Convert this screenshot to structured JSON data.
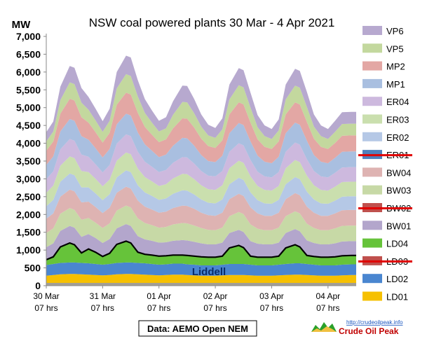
{
  "colors": {
    "VP6": "#b7a9cf",
    "VP5": "#c3d89e",
    "MP2": "#e3a7a4",
    "MP1": "#a9bfe0",
    "ER04": "#cdb9de",
    "ER03": "#cadfae",
    "ER02": "#b5c8e6",
    "ER01": "#4f81bd",
    "BW04": "#deb3b2",
    "BW03": "#c7d9a6",
    "BW02": "#c0504d",
    "BW01": "#b3a6cc",
    "LD04": "#66c33a",
    "LD03": "#c0504d",
    "LD02": "#4a86d0",
    "LD01": "#f6c000",
    "base": "#a39f94",
    "strike": "#e00000",
    "liddell_line": "#000000"
  },
  "chart_data": {
    "type": "area",
    "stacked": true,
    "title": "NSW coal powered plants 30 Mar - 4 Apr 2021",
    "ylabel": "MW",
    "ylim": [
      0,
      7000
    ],
    "yticks": [
      "0",
      "500",
      "1,000",
      "1,500",
      "2,000",
      "2,500",
      "3,000",
      "3,500",
      "4,000",
      "4,500",
      "5,000",
      "5,500",
      "6,000",
      "6,500",
      "7,000"
    ],
    "xlim": [
      0,
      132
    ],
    "xticks": [
      {
        "x": 0,
        "line1": "30 Mar",
        "line2": "07 hrs"
      },
      {
        "x": 24,
        "line1": "31 Mar",
        "line2": "07 hrs"
      },
      {
        "x": 48,
        "line1": "01 Apr",
        "line2": "07 hrs"
      },
      {
        "x": 72,
        "line1": "02 Apr",
        "line2": "07 hrs"
      },
      {
        "x": 96,
        "line1": "03 Apr",
        "line2": "07 hrs"
      },
      {
        "x": 120,
        "line1": "04 Apr",
        "line2": "07 hrs"
      }
    ],
    "x_hours": [
      0,
      3,
      6,
      10,
      12,
      15,
      18,
      21,
      24,
      27,
      30,
      34,
      36,
      39,
      42,
      45,
      48,
      51,
      54,
      58,
      60,
      63,
      66,
      69,
      72,
      75,
      78,
      82,
      84,
      87,
      90,
      93,
      96,
      99,
      102,
      106,
      108,
      111,
      114,
      117,
      120,
      123,
      126,
      130,
      132
    ],
    "series": [
      {
        "name": "LD01",
        "values": [
          280,
          300,
          320,
          330,
          330,
          320,
          310,
          300,
          290,
          300,
          320,
          330,
          330,
          320,
          310,
          300,
          290,
          300,
          310,
          310,
          300,
          290,
          280,
          280,
          280,
          290,
          300,
          300,
          300,
          290,
          280,
          280,
          280,
          290,
          300,
          310,
          310,
          300,
          290,
          280,
          280,
          280,
          290,
          300,
          300
        ]
      },
      {
        "name": "LD02",
        "values": [
          300,
          310,
          320,
          320,
          320,
          320,
          320,
          310,
          300,
          310,
          320,
          320,
          320,
          320,
          320,
          310,
          300,
          300,
          310,
          310,
          300,
          300,
          290,
          290,
          290,
          300,
          310,
          310,
          310,
          300,
          290,
          290,
          290,
          300,
          310,
          320,
          320,
          310,
          300,
          290,
          290,
          290,
          300,
          300,
          300
        ]
      },
      {
        "name": "LD03",
        "values": [
          0,
          0,
          0,
          0,
          0,
          0,
          0,
          0,
          0,
          0,
          0,
          0,
          0,
          0,
          0,
          0,
          0,
          0,
          0,
          0,
          0,
          0,
          0,
          0,
          0,
          0,
          0,
          0,
          0,
          0,
          0,
          0,
          0,
          0,
          0,
          0,
          0,
          0,
          0,
          0,
          0,
          0,
          0,
          0,
          0
        ]
      },
      {
        "name": "LD04",
        "values": [
          150,
          200,
          450,
          550,
          500,
          280,
          400,
          330,
          230,
          300,
          520,
          600,
          550,
          300,
          250,
          250,
          240,
          240,
          240,
          240,
          250,
          240,
          240,
          230,
          230,
          240,
          450,
          520,
          460,
          240,
          230,
          230,
          230,
          240,
          450,
          520,
          460,
          240,
          230,
          230,
          230,
          240,
          250,
          250,
          250
        ]
      },
      {
        "name": "BW01",
        "values": [
          350,
          380,
          450,
          480,
          480,
          450,
          420,
          400,
          380,
          400,
          450,
          480,
          480,
          450,
          420,
          400,
          380,
          380,
          400,
          420,
          420,
          400,
          380,
          360,
          360,
          380,
          420,
          440,
          440,
          420,
          380,
          360,
          360,
          380,
          420,
          440,
          440,
          420,
          380,
          360,
          360,
          380,
          400,
          400,
          400
        ]
      },
      {
        "name": "BW02",
        "values": [
          0,
          0,
          0,
          0,
          0,
          0,
          0,
          0,
          0,
          0,
          0,
          0,
          0,
          0,
          0,
          0,
          0,
          0,
          0,
          0,
          0,
          0,
          0,
          0,
          0,
          0,
          0,
          0,
          0,
          0,
          0,
          0,
          0,
          0,
          0,
          0,
          0,
          0,
          0,
          0,
          0,
          0,
          0,
          0,
          0
        ]
      },
      {
        "name": "BW03",
        "values": [
          400,
          420,
          480,
          500,
          500,
          480,
          450,
          430,
          420,
          440,
          500,
          520,
          520,
          500,
          460,
          440,
          420,
          430,
          460,
          480,
          480,
          460,
          430,
          410,
          400,
          420,
          470,
          500,
          500,
          470,
          420,
          400,
          400,
          420,
          470,
          500,
          500,
          470,
          420,
          400,
          400,
          420,
          440,
          440,
          440
        ]
      },
      {
        "name": "BW04",
        "values": [
          400,
          420,
          480,
          520,
          520,
          490,
          460,
          440,
          420,
          440,
          500,
          530,
          530,
          500,
          460,
          440,
          420,
          430,
          460,
          490,
          490,
          470,
          430,
          410,
          400,
          420,
          480,
          510,
          510,
          480,
          430,
          400,
          400,
          420,
          480,
          510,
          510,
          480,
          430,
          400,
          400,
          420,
          440,
          440,
          440
        ]
      },
      {
        "name": "ER01",
        "values": [
          0,
          0,
          0,
          0,
          0,
          0,
          0,
          0,
          0,
          0,
          0,
          0,
          0,
          0,
          0,
          0,
          0,
          0,
          0,
          0,
          0,
          0,
          0,
          0,
          0,
          0,
          0,
          0,
          0,
          0,
          0,
          0,
          0,
          0,
          0,
          0,
          0,
          0,
          0,
          0,
          0,
          0,
          0,
          0,
          0
        ]
      },
      {
        "name": "ER02",
        "values": [
          350,
          380,
          420,
          450,
          450,
          420,
          400,
          380,
          360,
          380,
          430,
          460,
          460,
          430,
          400,
          380,
          360,
          370,
          400,
          430,
          430,
          400,
          370,
          350,
          350,
          370,
          420,
          450,
          450,
          420,
          370,
          350,
          340,
          360,
          420,
          450,
          450,
          420,
          370,
          350,
          340,
          360,
          380,
          380,
          380
        ]
      },
      {
        "name": "ER03",
        "values": [
          380,
          400,
          450,
          480,
          480,
          460,
          430,
          410,
          390,
          410,
          470,
          500,
          500,
          470,
          430,
          410,
          390,
          400,
          430,
          460,
          460,
          430,
          400,
          380,
          380,
          400,
          450,
          480,
          480,
          450,
          400,
          380,
          370,
          390,
          450,
          480,
          480,
          450,
          400,
          380,
          370,
          390,
          410,
          410,
          410
        ]
      },
      {
        "name": "ER04",
        "values": [
          380,
          400,
          460,
          490,
          490,
          460,
          430,
          410,
          390,
          410,
          480,
          510,
          510,
          470,
          430,
          410,
          390,
          400,
          440,
          470,
          470,
          440,
          400,
          380,
          380,
          400,
          460,
          490,
          490,
          460,
          400,
          380,
          370,
          390,
          460,
          490,
          490,
          460,
          400,
          380,
          370,
          390,
          410,
          410,
          410
        ]
      },
      {
        "name": "MP1",
        "values": [
          400,
          420,
          500,
          560,
          560,
          520,
          480,
          450,
          420,
          450,
          540,
          580,
          580,
          540,
          490,
          450,
          420,
          430,
          480,
          540,
          540,
          500,
          450,
          410,
          400,
          430,
          520,
          570,
          570,
          520,
          450,
          410,
          400,
          430,
          520,
          560,
          560,
          520,
          450,
          410,
          400,
          420,
          440,
          440,
          440
        ]
      },
      {
        "name": "MP2",
        "values": [
          400,
          420,
          500,
          570,
          570,
          530,
          480,
          450,
          420,
          450,
          550,
          590,
          590,
          550,
          490,
          450,
          420,
          430,
          490,
          550,
          550,
          510,
          460,
          420,
          400,
          430,
          530,
          580,
          580,
          530,
          460,
          420,
          400,
          430,
          530,
          570,
          570,
          530,
          460,
          420,
          400,
          420,
          450,
          450,
          450
        ]
      },
      {
        "name": "VP5",
        "values": [
          260,
          280,
          380,
          460,
          460,
          410,
          360,
          330,
          300,
          340,
          460,
          520,
          520,
          460,
          390,
          340,
          300,
          310,
          380,
          460,
          460,
          400,
          340,
          300,
          280,
          310,
          420,
          480,
          480,
          420,
          340,
          300,
          280,
          310,
          420,
          470,
          470,
          420,
          340,
          300,
          280,
          310,
          330,
          330,
          330
        ]
      },
      {
        "name": "VP6",
        "values": [
          260,
          280,
          380,
          460,
          460,
          410,
          360,
          330,
          300,
          340,
          460,
          520,
          520,
          460,
          390,
          340,
          300,
          310,
          380,
          460,
          460,
          400,
          340,
          300,
          280,
          310,
          420,
          480,
          480,
          420,
          340,
          300,
          280,
          310,
          420,
          470,
          470,
          420,
          340,
          300,
          280,
          310,
          330,
          330,
          330
        ]
      }
    ],
    "legend": [
      "VP6",
      "VP5",
      "MP2",
      "MP1",
      "ER04",
      "ER03",
      "ER02",
      "ER01",
      "BW04",
      "BW03",
      "BW02",
      "BW01",
      "LD04",
      "LD03",
      "LD02",
      "LD01"
    ],
    "legend_struck": [
      "ER01",
      "BW02",
      "LD03"
    ],
    "legend_placement": "right",
    "annotations": {
      "liddell": "Liddell"
    },
    "grid": false
  },
  "source_box": "Data: AEMO Open NEM",
  "logo": {
    "url": "http://crudeoilpeak.info",
    "name": "Crude Oil Peak"
  }
}
